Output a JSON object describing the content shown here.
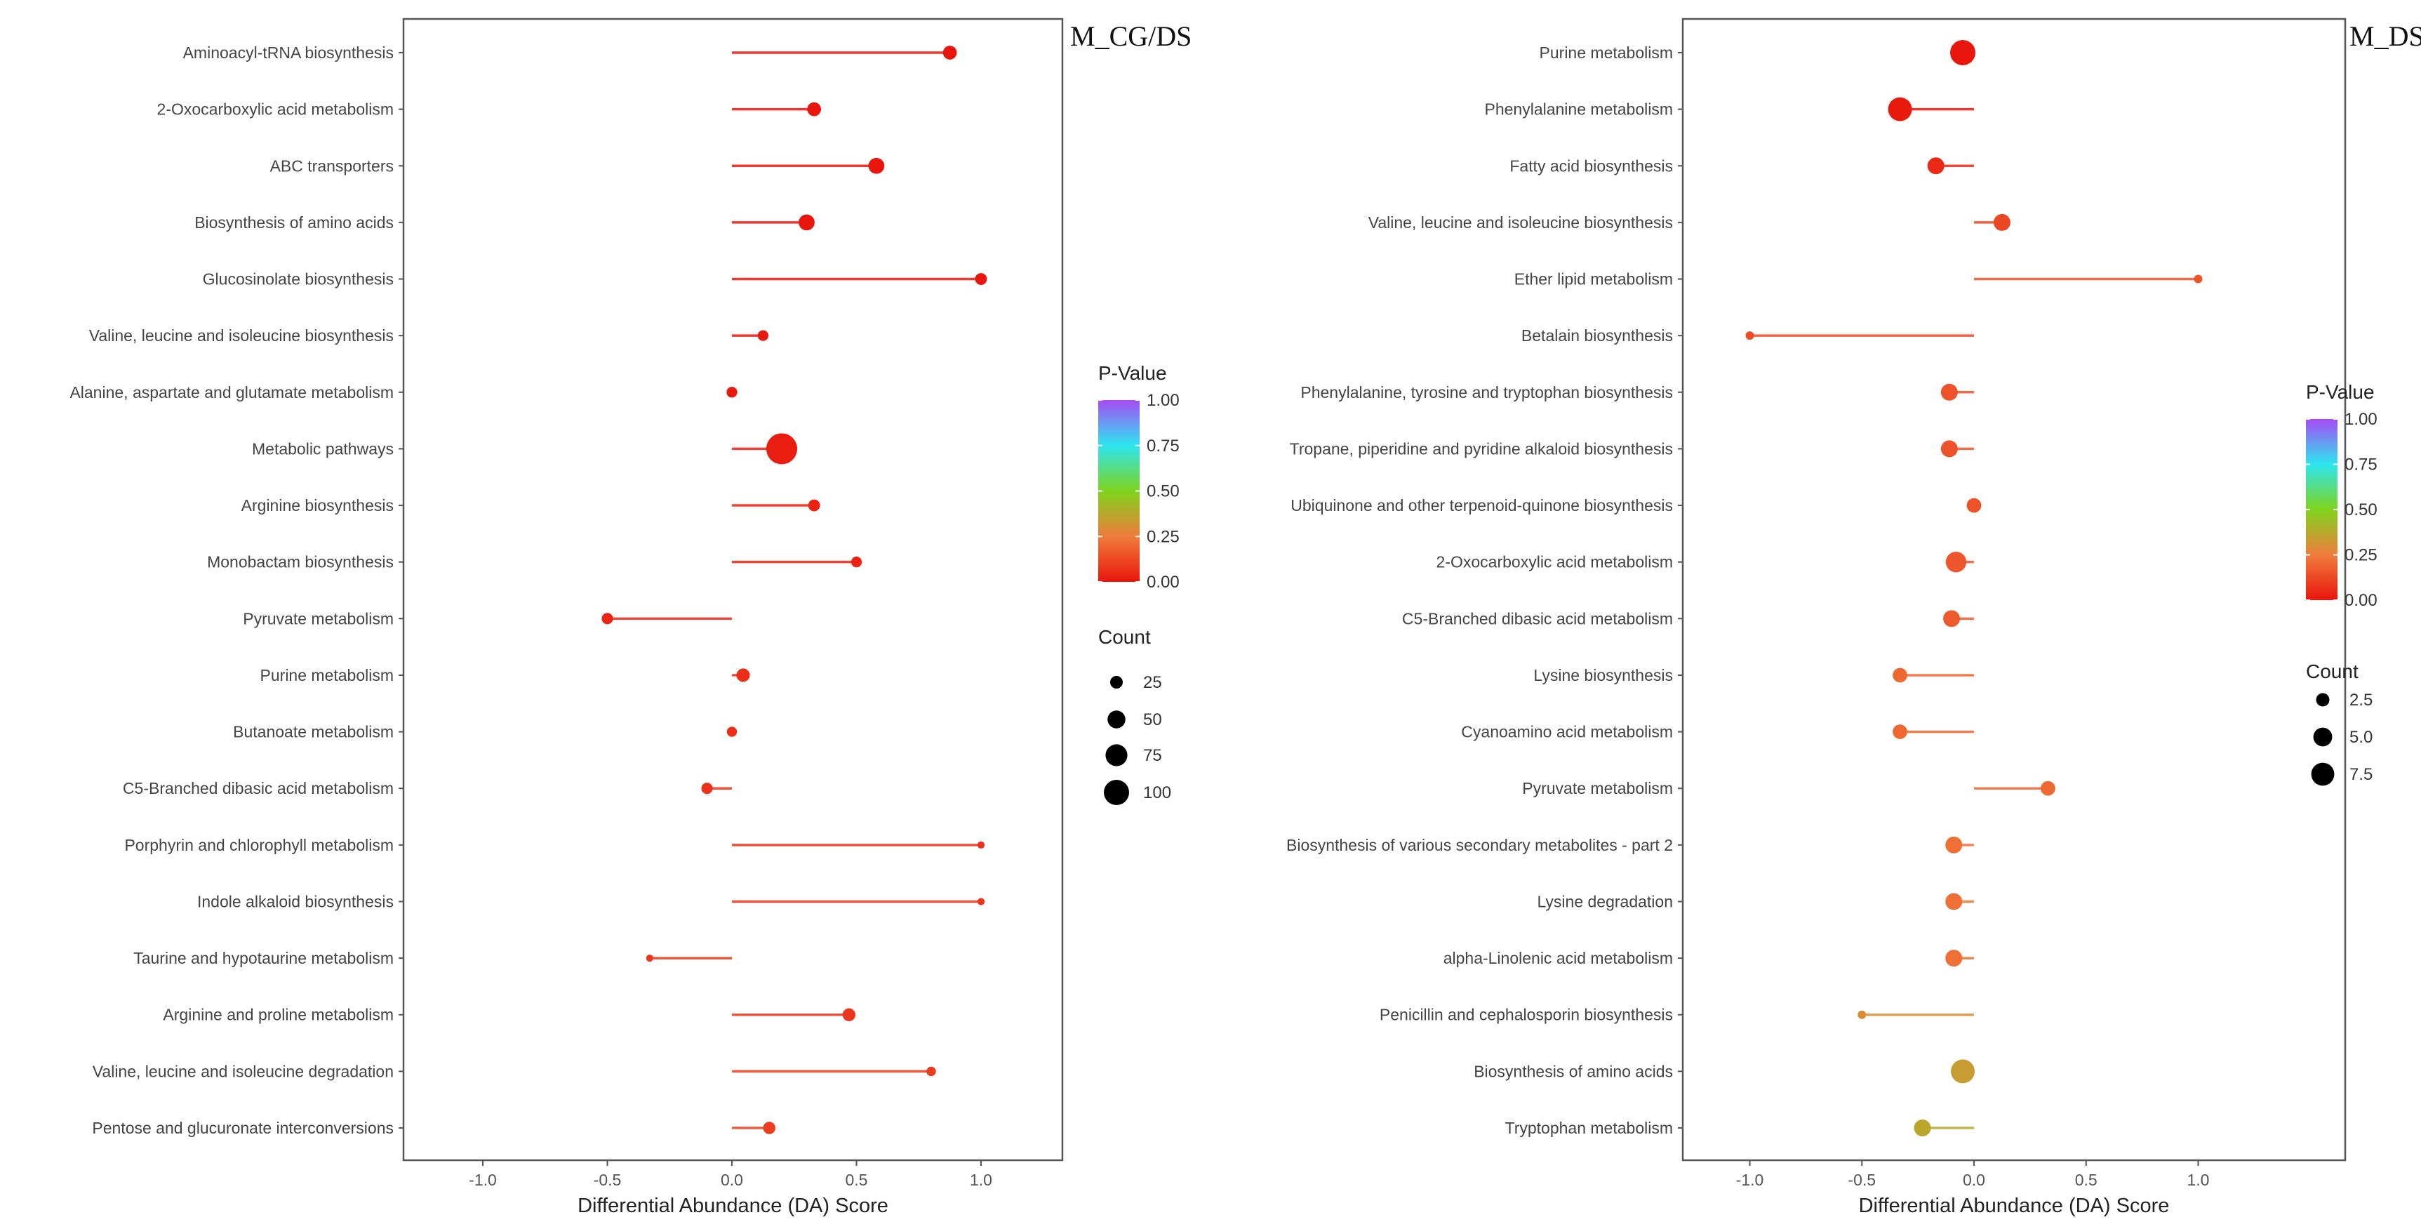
{
  "chart_data": [
    {
      "type": "lollipop",
      "title": "M_CG/DS",
      "xlabel": "Differential Abundance (DA) Score",
      "xlim": [
        -1.3,
        1.3
      ],
      "xticks": [
        -1.0,
        -0.5,
        0.0,
        0.5,
        1.0
      ],
      "xtick_labels": [
        "-1.0",
        "-0.5",
        "0.0",
        "0.5",
        "1.0"
      ],
      "color_legend": {
        "title": "P-Value",
        "ticks": [
          "1.00",
          "0.75",
          "0.50",
          "0.25",
          "0.00"
        ]
      },
      "size_legend": {
        "title": "Count",
        "values": [
          25,
          50,
          75,
          100
        ],
        "labels": [
          "25",
          "50",
          "75",
          "100"
        ]
      },
      "categories": [
        "Aminoacyl-tRNA biosynthesis",
        "2-Oxocarboxylic acid metabolism",
        "ABC transporters",
        "Biosynthesis of amino acids",
        "Glucosinolate biosynthesis",
        "Valine, leucine and isoleucine biosynthesis",
        "Alanine, aspartate and glutamate metabolism",
        "Metabolic pathways",
        "Arginine biosynthesis",
        "Monobactam biosynthesis",
        "Pyruvate metabolism",
        "Purine metabolism",
        "Butanoate metabolism",
        "C5-Branched dibasic acid metabolism",
        "Porphyrin and chlorophyll metabolism",
        "Indole alkaloid biosynthesis",
        "Taurine and hypotaurine metabolism",
        "Arginine and proline metabolism",
        "Valine, leucine and isoleucine degradation",
        "Pentose and glucuronate interconversions"
      ],
      "da_score": [
        0.875,
        0.33,
        0.58,
        0.3,
        1.0,
        0.125,
        0.0,
        0.2,
        0.33,
        0.5,
        -0.5,
        0.045,
        0.0,
        -0.1,
        1.0,
        1.0,
        -0.33,
        0.47,
        0.8,
        0.15
      ],
      "count": [
        30,
        30,
        40,
        40,
        22,
        18,
        18,
        150,
        22,
        18,
        20,
        28,
        16,
        20,
        8,
        8,
        8,
        26,
        14,
        24
      ],
      "p_value": [
        0.0,
        0.0,
        0.0,
        0.0,
        0.0,
        0.01,
        0.01,
        0.02,
        0.03,
        0.03,
        0.04,
        0.06,
        0.06,
        0.07,
        0.07,
        0.07,
        0.08,
        0.08,
        0.09,
        0.1
      ]
    },
    {
      "type": "lollipop",
      "title": "M_DS/COS",
      "xlabel": "Differential Abundance (DA) Score",
      "xlim": [
        -1.3,
        1.3
      ],
      "xticks": [
        -1.0,
        -0.5,
        0.0,
        0.5,
        1.0
      ],
      "xtick_labels": [
        "-1.0",
        "-0.5",
        "0.0",
        "0.5",
        "1.0"
      ],
      "color_legend": {
        "title": "P-Value",
        "ticks": [
          "1.00",
          "0.75",
          "0.50",
          "0.25",
          "0.00"
        ]
      },
      "size_legend": {
        "title": "Count",
        "values": [
          2.5,
          5.0,
          7.5
        ],
        "labels": [
          "2.5",
          "5.0",
          "7.5"
        ]
      },
      "categories": [
        "Purine metabolism",
        "Phenylalanine metabolism",
        "Fatty acid biosynthesis",
        "Valine, leucine and isoleucine biosynthesis",
        "Ether lipid metabolism",
        "Betalain biosynthesis",
        "Phenylalanine, tyrosine and tryptophan biosynthesis",
        "Tropane, piperidine and pyridine alkaloid biosynthesis",
        "Ubiquinone and other terpenoid-quinone biosynthesis",
        "2-Oxocarboxylic acid metabolism",
        "C5-Branched dibasic acid metabolism",
        "Lysine biosynthesis",
        "Cyanoamino acid metabolism",
        "Pyruvate metabolism",
        "Biosynthesis of various secondary metabolites - part 2",
        "Lysine degradation",
        "alpha-Linolenic acid metabolism",
        "Penicillin and cephalosporin biosynthesis",
        "Biosynthesis of amino acids",
        "Tryptophan metabolism"
      ],
      "da_score": [
        -0.05,
        -0.33,
        -0.17,
        0.125,
        1.0,
        -1.0,
        -0.11,
        -0.11,
        0.0,
        -0.08,
        -0.1,
        -0.33,
        -0.33,
        0.33,
        -0.09,
        -0.09,
        -0.09,
        -0.5,
        -0.05,
        -0.23
      ],
      "count": [
        9,
        8,
        4,
        4,
        1,
        1,
        4,
        4,
        3,
        6,
        4,
        3,
        3,
        3,
        4,
        4,
        4,
        1,
        8,
        4
      ],
      "p_value": [
        0.0,
        0.01,
        0.05,
        0.12,
        0.15,
        0.13,
        0.15,
        0.15,
        0.15,
        0.16,
        0.17,
        0.2,
        0.2,
        0.2,
        0.22,
        0.22,
        0.22,
        0.3,
        0.34,
        0.37
      ]
    }
  ],
  "colors": {
    "gradient": [
      "#e8160c",
      "#f07c3c",
      "#7fd41c",
      "#2de6f0",
      "#a64cf5"
    ],
    "axis": "#444444",
    "legend_dot": "#000000"
  }
}
